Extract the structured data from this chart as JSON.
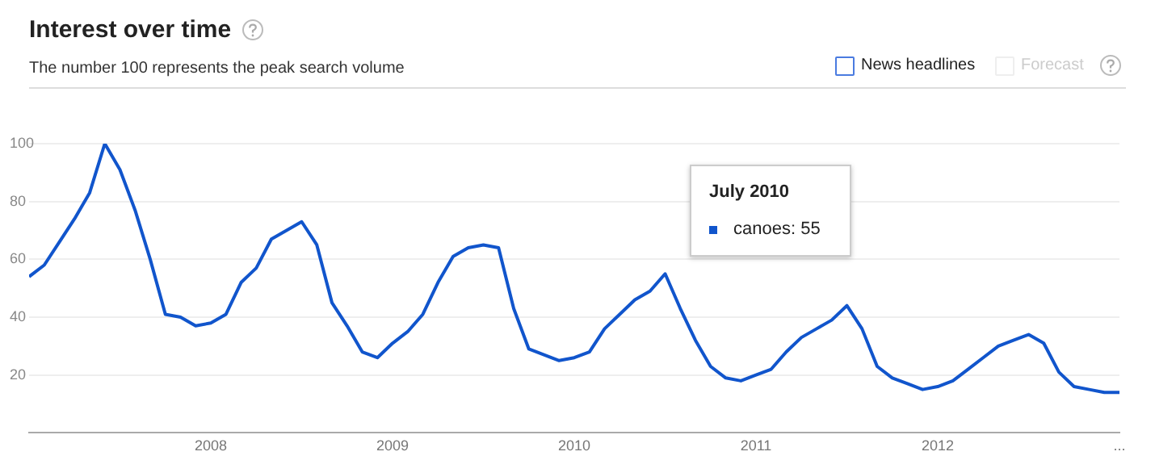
{
  "chart_data": {
    "type": "line",
    "title": "Interest over time",
    "subtitle": "The number 100 represents the peak search volume",
    "annotations": [
      "News headlines",
      "Forecast",
      "July 2010",
      "canoes: 55"
    ],
    "x": [
      "2007-01",
      "2007-02",
      "2007-03",
      "2007-04",
      "2007-05",
      "2007-06",
      "2007-07",
      "2007-08",
      "2007-09",
      "2007-10",
      "2007-11",
      "2007-12",
      "2008-01",
      "2008-02",
      "2008-03",
      "2008-04",
      "2008-05",
      "2008-06",
      "2008-07",
      "2008-08",
      "2008-09",
      "2008-10",
      "2008-11",
      "2008-12",
      "2009-01",
      "2009-02",
      "2009-03",
      "2009-04",
      "2009-05",
      "2009-06",
      "2009-07",
      "2009-08",
      "2009-09",
      "2009-10",
      "2009-11",
      "2009-12",
      "2010-01",
      "2010-02",
      "2010-03",
      "2010-04",
      "2010-05",
      "2010-06",
      "2010-07",
      "2010-08",
      "2010-09",
      "2010-10",
      "2010-11",
      "2010-12",
      "2011-01",
      "2011-02",
      "2011-03",
      "2011-04",
      "2011-05",
      "2011-06",
      "2011-07",
      "2011-08",
      "2011-09",
      "2011-10",
      "2011-11",
      "2011-12",
      "2012-01",
      "2012-02",
      "2012-03",
      "2012-04",
      "2012-05",
      "2012-06",
      "2012-07",
      "2012-08",
      "2012-09",
      "2012-10",
      "2012-11",
      "2012-12",
      "2013-01"
    ],
    "series": [
      {
        "color": "#1155cc",
        "values": [
          54,
          58,
          66,
          74,
          83,
          100,
          91,
          77,
          60,
          41,
          40,
          37,
          38,
          41,
          52,
          57,
          67,
          70,
          73,
          65,
          45,
          37,
          28,
          26,
          31,
          35,
          41,
          52,
          61,
          64,
          65,
          64,
          43,
          29,
          27,
          25,
          26,
          28,
          36,
          41,
          46,
          49,
          55,
          43,
          32,
          23,
          19,
          18,
          20,
          22,
          28,
          33,
          36,
          39,
          44,
          36,
          23,
          19,
          17,
          15,
          16,
          18,
          22,
          26,
          30,
          32,
          34,
          31,
          21,
          16,
          15,
          14,
          14
        ]
      }
    ],
    "xlim": [
      "2007-01",
      "2013-01"
    ],
    "xticks": [
      "2008",
      "2009",
      "2010",
      "2011",
      "2012",
      {
        "value": "2013",
        "label": "..."
      }
    ],
    "ylim": [
      0,
      100
    ],
    "yticks": [
      20,
      40,
      60,
      80,
      100
    ],
    "grid": "y",
    "legend": false,
    "marker": "none",
    "line_style": "solid"
  }
}
